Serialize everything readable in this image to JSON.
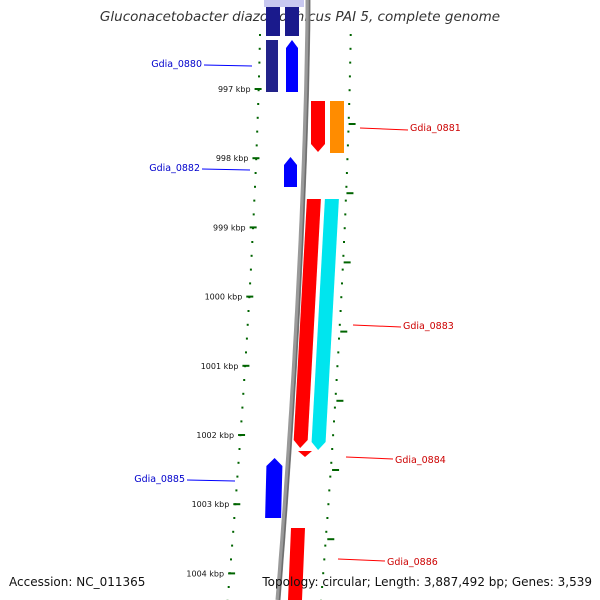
{
  "title": "Gluconacetobacter diazotrophicus PAI 5, complete genome",
  "accession": "Accession: NC_011365",
  "topology": "Topology: circular; Length: 3,887,492 bp; Genes: 3,539",
  "colors": {
    "forward": "#0000ff",
    "reverse": "#ff0000",
    "orange": "#ff8c00",
    "cyan": "#00e5ee",
    "tick": "#006400",
    "backbone": "#888888",
    "forward_label": "#0000cc",
    "reverse_label": "#cc0000"
  },
  "ticks": [
    {
      "label": "997 kbp",
      "kbp": 997
    },
    {
      "label": "998 kbp",
      "kbp": 998
    },
    {
      "label": "999 kbp",
      "kbp": 999
    },
    {
      "label": "1000 kbp",
      "kbp": 1000
    },
    {
      "label": "1001 kbp",
      "kbp": 1001
    },
    {
      "label": "1002 kbp",
      "kbp": 1002
    },
    {
      "label": "1003 kbp",
      "kbp": 1003
    },
    {
      "label": "1004 kbp",
      "kbp": 1004
    }
  ],
  "genes": [
    {
      "name": "Gdia_0880",
      "strand": "+",
      "start_kbp": 996.5,
      "end_kbp": 997.0
    },
    {
      "name": "Gdia_0881",
      "strand": "-",
      "start_kbp": 997.2,
      "end_kbp": 997.85
    },
    {
      "name": "Gdia_0882",
      "strand": "+",
      "start_kbp": 998.3,
      "end_kbp": 998.65
    },
    {
      "name": "Gdia_0883",
      "strand": "-",
      "start_kbp": 998.6,
      "end_kbp": 1002.25
    },
    {
      "name": "Gdia_0884",
      "strand": "-",
      "start_kbp": 1002.25,
      "end_kbp": 1002.35
    },
    {
      "name": "Gdia_0885",
      "strand": "+",
      "start_kbp": 1002.4,
      "end_kbp": 1003.2
    },
    {
      "name": "Gdia_0886",
      "strand": "-",
      "start_kbp": 1003.45,
      "end_kbp": 1004.5
    }
  ]
}
